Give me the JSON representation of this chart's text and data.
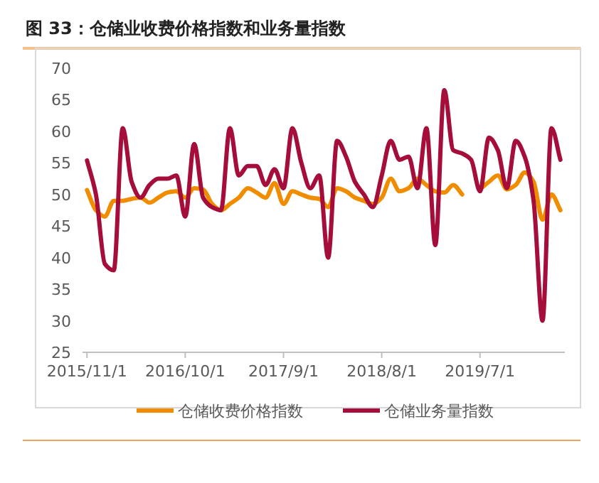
{
  "chart_data": {
    "type": "line",
    "title": "图 33：仓储业收费价格指数和业务量指数",
    "categories": [
      "2015/11/1",
      null,
      null,
      null,
      null,
      null,
      null,
      null,
      null,
      null,
      null,
      "2016/10/1",
      null,
      null,
      null,
      null,
      null,
      null,
      null,
      null,
      null,
      null,
      "2017/9/1",
      null,
      null,
      null,
      null,
      null,
      null,
      null,
      null,
      null,
      null,
      "2018/8/1",
      null,
      null,
      null,
      null,
      null,
      null,
      null,
      null,
      null,
      null,
      "2019/7/1",
      null,
      null,
      null,
      null,
      null,
      null,
      null,
      null,
      null
    ],
    "series": [
      {
        "name": "仓储收费价格指数",
        "color": "#f08c00",
        "values": [
          50.7,
          47.5,
          46.5,
          49,
          49,
          49.3,
          49.5,
          48.7,
          49.5,
          50.3,
          50.5,
          49.5,
          51,
          50.8,
          48.5,
          47.5,
          48.5,
          49.5,
          51,
          50.3,
          49.5,
          51.8,
          48.5,
          50.5,
          50,
          49.5,
          49.3,
          48,
          51,
          50.5,
          49.5,
          49,
          48.5,
          49.5,
          52.5,
          50.5,
          51,
          52.5,
          51.5,
          50.5,
          50.3,
          51.5,
          50,
          null,
          50.8,
          52,
          53,
          50.8,
          51.5,
          53.5,
          52,
          46,
          50,
          47.5
        ]
      },
      {
        "name": "仓储业务量指数",
        "color": "#a50d3a",
        "values": [
          55.4,
          50,
          39,
          38,
          60.5,
          52,
          49.5,
          51.5,
          52.5,
          52.5,
          53,
          46.5,
          58,
          49.5,
          48,
          47.5,
          60.5,
          53,
          54.5,
          54.5,
          51.5,
          54,
          51,
          60.5,
          55,
          51,
          53,
          40,
          58.5,
          56,
          52,
          50,
          48,
          53,
          58.5,
          55.5,
          56,
          51,
          60.5,
          42,
          66.5,
          57,
          56.5,
          55.5,
          50.5,
          59,
          57,
          51,
          58.5,
          56,
          49,
          30,
          60.5,
          55.5
        ]
      }
    ],
    "ylim": [
      25,
      70
    ],
    "yticks": [
      25,
      30,
      35,
      40,
      45,
      50,
      55,
      60,
      65,
      70
    ],
    "grid": false,
    "legend": "bottom",
    "marker": "none",
    "line_style": "solid"
  }
}
